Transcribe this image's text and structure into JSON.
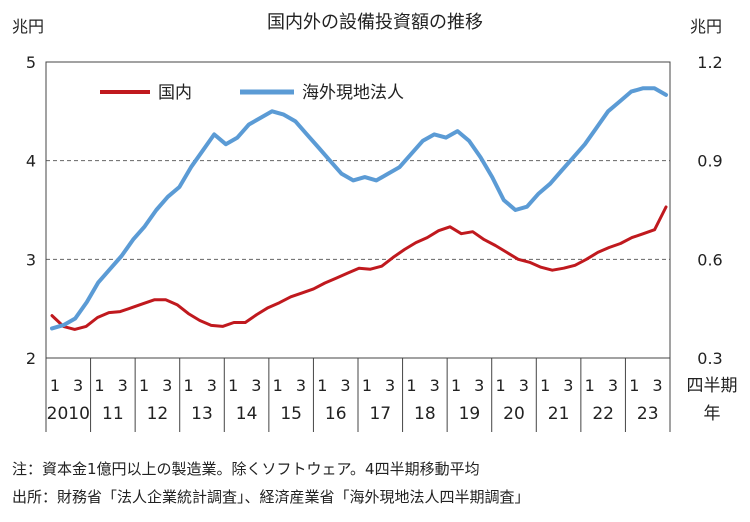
{
  "chart_data": {
    "type": "line",
    "title": "国内外の設備投資額の推移",
    "left_axis": {
      "unit": "兆円",
      "range": [
        2,
        5
      ],
      "ticks": [
        "2",
        "3",
        "4",
        "5"
      ]
    },
    "right_axis": {
      "unit": "兆円",
      "range": [
        0.3,
        1.2
      ],
      "ticks": [
        "0.3",
        "0.6",
        "0.9",
        "1.2"
      ]
    },
    "x_axis": {
      "quarter_labels": [
        "1",
        "3"
      ],
      "years": [
        "2010",
        "11",
        "12",
        "13",
        "14",
        "15",
        "16",
        "17",
        "18",
        "19",
        "20",
        "21",
        "22",
        "23"
      ],
      "unit_label_1": "四半期",
      "unit_label_2": "年"
    },
    "gridlines": [
      3,
      4
    ],
    "series": [
      {
        "name": "国内",
        "axis": "left",
        "color": "#c0191e",
        "values": [
          2.43,
          2.32,
          2.29,
          2.32,
          2.41,
          2.46,
          2.47,
          2.51,
          2.55,
          2.59,
          2.59,
          2.54,
          2.45,
          2.38,
          2.33,
          2.32,
          2.36,
          2.36,
          2.44,
          2.51,
          2.56,
          2.62,
          2.66,
          2.7,
          2.76,
          2.81,
          2.86,
          2.91,
          2.9,
          2.93,
          3.02,
          3.1,
          3.17,
          3.22,
          3.29,
          3.33,
          3.26,
          3.28,
          3.2,
          3.14,
          3.07,
          3.0,
          2.97,
          2.92,
          2.89,
          2.91,
          2.94,
          3.0,
          3.07,
          3.12,
          3.16,
          3.22,
          3.26,
          3.3,
          3.53
        ]
      },
      {
        "name": "海外現地法人",
        "axis": "right",
        "color": "#5b9bd5",
        "values": [
          0.39,
          0.4,
          0.42,
          0.47,
          0.53,
          0.57,
          0.61,
          0.66,
          0.7,
          0.75,
          0.79,
          0.82,
          0.88,
          0.93,
          0.98,
          0.95,
          0.97,
          1.01,
          1.03,
          1.05,
          1.04,
          1.02,
          0.98,
          0.94,
          0.9,
          0.86,
          0.84,
          0.85,
          0.84,
          0.86,
          0.88,
          0.92,
          0.96,
          0.98,
          0.97,
          0.99,
          0.96,
          0.91,
          0.85,
          0.78,
          0.75,
          0.76,
          0.8,
          0.83,
          0.87,
          0.91,
          0.95,
          1.0,
          1.05,
          1.08,
          1.11,
          1.12,
          1.12,
          1.1
        ]
      }
    ]
  },
  "notes": {
    "note": "注：資本金1億円以上の製造業。除くソフトウェア。4四半期移動平均",
    "source": "出所：財務省「法人企業統計調査」、経済産業省「海外現地法人四半期調査」"
  }
}
